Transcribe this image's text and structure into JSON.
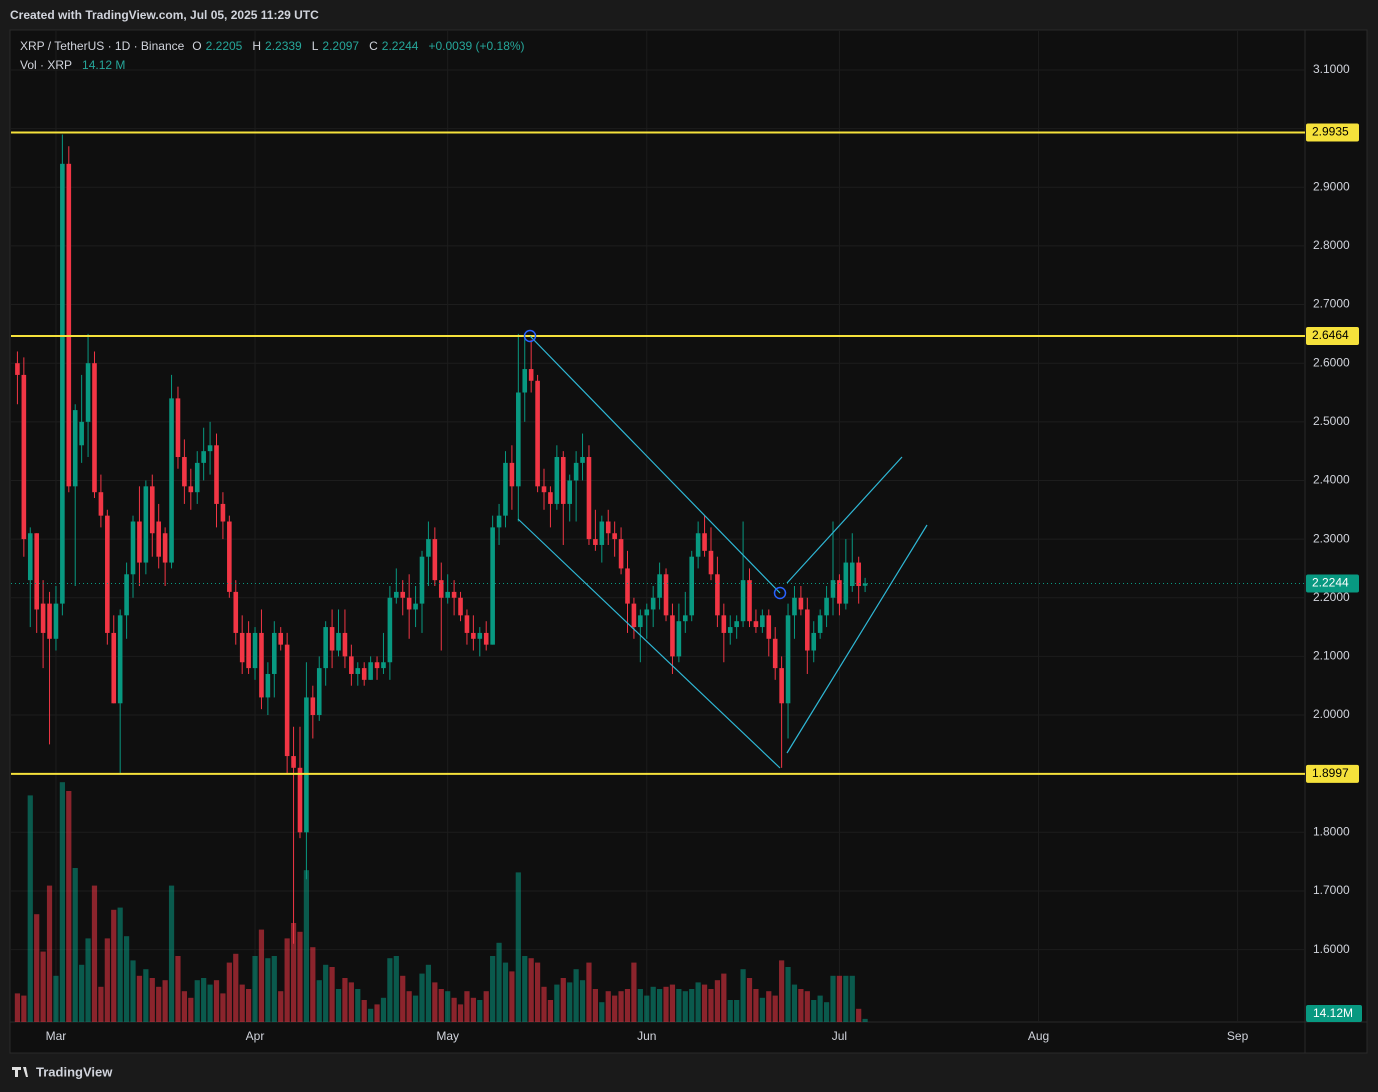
{
  "header": {
    "title": "Created with TradingView.com, Jul 05, 2025 11:29 UTC"
  },
  "footer": {
    "brand": "TradingView"
  },
  "chart_data": {
    "type": "candlestick",
    "symbol": "XRP / TetherUS · 1D · Binance",
    "ohlc_labels": [
      "O",
      "H",
      "L",
      "C"
    ],
    "change_label": "+0.0039 (+0.18%)",
    "volume_title": "Vol · XRP",
    "volume_legend_value": "14.12 M",
    "volume_axis_tag": "14.12M",
    "up_color": "#089981",
    "down_color": "#f23645",
    "level_color": "#f5e13b",
    "grid": true,
    "xlim": [
      -1,
      200.5
    ],
    "xticks": [
      {
        "value": 6,
        "label": "Mar"
      },
      {
        "value": 37,
        "label": "Apr"
      },
      {
        "value": 67,
        "label": "May"
      },
      {
        "value": 98,
        "label": "Jun"
      },
      {
        "value": 128,
        "label": "Jul"
      },
      {
        "value": 159,
        "label": "Aug"
      },
      {
        "value": 190,
        "label": "Sep"
      }
    ],
    "ylim": [
      1.4765,
      3.1665
    ],
    "yticks": [
      {
        "value": 1.6,
        "label": "1.6000"
      },
      {
        "value": 1.7,
        "label": "1.7000"
      },
      {
        "value": 1.8,
        "label": "1.8000"
      },
      {
        "value": 1.9,
        "label": "1.9000"
      },
      {
        "value": 2.0,
        "label": "2.0000"
      },
      {
        "value": 2.1,
        "label": "2.1000"
      },
      {
        "value": 2.2,
        "label": "2.2000"
      },
      {
        "value": 2.3,
        "label": "2.3000"
      },
      {
        "value": 2.4,
        "label": "2.4000"
      },
      {
        "value": 2.5,
        "label": "2.5000"
      },
      {
        "value": 2.6,
        "label": "2.6000"
      },
      {
        "value": 2.7,
        "label": "2.7000"
      },
      {
        "value": 2.8,
        "label": "2.8000"
      },
      {
        "value": 2.9,
        "label": "2.9000"
      },
      {
        "value": 3.0,
        "label": "3.0000"
      },
      {
        "value": 3.1,
        "label": "3.1000"
      }
    ],
    "levels": [
      2.9935,
      2.6464,
      1.8997
    ],
    "candles": [
      [
        2.6,
        2.62,
        2.53,
        2.58
      ],
      [
        2.58,
        2.61,
        2.27,
        2.3
      ],
      [
        2.23,
        2.32,
        2.15,
        2.31
      ],
      [
        2.31,
        2.31,
        2.14,
        2.18
      ],
      [
        2.19,
        2.23,
        2.08,
        2.14
      ],
      [
        2.19,
        2.21,
        1.95,
        2.13
      ],
      [
        2.13,
        2.22,
        2.11,
        2.19
      ],
      [
        2.19,
        2.99,
        2.17,
        2.94
      ],
      [
        2.94,
        2.97,
        2.38,
        2.39
      ],
      [
        2.39,
        2.53,
        2.22,
        2.52
      ],
      [
        2.46,
        2.58,
        2.43,
        2.5
      ],
      [
        2.5,
        2.65,
        2.44,
        2.6
      ],
      [
        2.6,
        2.62,
        2.37,
        2.38
      ],
      [
        2.38,
        2.41,
        2.32,
        2.34
      ],
      [
        2.34,
        2.35,
        2.12,
        2.14
      ],
      [
        2.14,
        2.17,
        2.02,
        2.02
      ],
      [
        2.02,
        2.18,
        1.9,
        2.17
      ],
      [
        2.17,
        2.26,
        2.13,
        2.24
      ],
      [
        2.24,
        2.34,
        2.2,
        2.33
      ],
      [
        2.33,
        2.39,
        2.22,
        2.26
      ],
      [
        2.26,
        2.4,
        2.24,
        2.39
      ],
      [
        2.39,
        2.41,
        2.27,
        2.31
      ],
      [
        2.33,
        2.36,
        2.25,
        2.27
      ],
      [
        2.31,
        2.32,
        2.22,
        2.26
      ],
      [
        2.26,
        2.58,
        2.25,
        2.54
      ],
      [
        2.54,
        2.56,
        2.42,
        2.44
      ],
      [
        2.44,
        2.47,
        2.36,
        2.39
      ],
      [
        2.39,
        2.42,
        2.35,
        2.38
      ],
      [
        2.38,
        2.45,
        2.36,
        2.43
      ],
      [
        2.43,
        2.49,
        2.4,
        2.45
      ],
      [
        2.45,
        2.5,
        2.41,
        2.46
      ],
      [
        2.46,
        2.48,
        2.32,
        2.36
      ],
      [
        2.36,
        2.38,
        2.3,
        2.33
      ],
      [
        2.33,
        2.34,
        2.2,
        2.21
      ],
      [
        2.21,
        2.23,
        2.12,
        2.14
      ],
      [
        2.14,
        2.17,
        2.07,
        2.09
      ],
      [
        2.14,
        2.16,
        2.07,
        2.08
      ],
      [
        2.08,
        2.15,
        2.06,
        2.14
      ],
      [
        2.14,
        2.18,
        2.01,
        2.03
      ],
      [
        2.03,
        2.09,
        2.0,
        2.07
      ],
      [
        2.07,
        2.16,
        2.03,
        2.14
      ],
      [
        2.14,
        2.15,
        2.11,
        2.12
      ],
      [
        2.12,
        2.14,
        1.9,
        1.93
      ],
      [
        1.93,
        1.98,
        1.61,
        1.91
      ],
      [
        1.91,
        1.98,
        1.79,
        1.8
      ],
      [
        1.8,
        2.09,
        1.72,
        2.03
      ],
      [
        2.03,
        2.05,
        1.96,
        2.0
      ],
      [
        2.0,
        2.1,
        1.99,
        2.08
      ],
      [
        2.08,
        2.16,
        2.05,
        2.15
      ],
      [
        2.15,
        2.18,
        2.08,
        2.11
      ],
      [
        2.11,
        2.18,
        2.1,
        2.14
      ],
      [
        2.14,
        2.18,
        2.08,
        2.1
      ],
      [
        2.1,
        2.12,
        2.05,
        2.07
      ],
      [
        2.07,
        2.09,
        2.05,
        2.08
      ],
      [
        2.08,
        2.09,
        2.05,
        2.06
      ],
      [
        2.06,
        2.1,
        2.06,
        2.09
      ],
      [
        2.09,
        2.1,
        2.06,
        2.08
      ],
      [
        2.08,
        2.14,
        2.07,
        2.09
      ],
      [
        2.09,
        2.22,
        2.06,
        2.2
      ],
      [
        2.2,
        2.25,
        2.19,
        2.21
      ],
      [
        2.21,
        2.23,
        2.17,
        2.2
      ],
      [
        2.2,
        2.24,
        2.13,
        2.18
      ],
      [
        2.18,
        2.22,
        2.15,
        2.19
      ],
      [
        2.19,
        2.28,
        2.14,
        2.27
      ],
      [
        2.27,
        2.33,
        2.22,
        2.3
      ],
      [
        2.3,
        2.32,
        2.22,
        2.23
      ],
      [
        2.23,
        2.26,
        2.11,
        2.2
      ],
      [
        2.2,
        2.24,
        2.19,
        2.21
      ],
      [
        2.21,
        2.23,
        2.17,
        2.2
      ],
      [
        2.2,
        2.21,
        2.16,
        2.17
      ],
      [
        2.17,
        2.18,
        2.12,
        2.14
      ],
      [
        2.14,
        2.17,
        2.11,
        2.13
      ],
      [
        2.13,
        2.15,
        2.1,
        2.14
      ],
      [
        2.14,
        2.16,
        2.11,
        2.12
      ],
      [
        2.12,
        2.34,
        2.12,
        2.32
      ],
      [
        2.32,
        2.36,
        2.29,
        2.34
      ],
      [
        2.34,
        2.45,
        2.32,
        2.43
      ],
      [
        2.43,
        2.46,
        2.35,
        2.39
      ],
      [
        2.39,
        2.65,
        2.33,
        2.55
      ],
      [
        2.55,
        2.65,
        2.5,
        2.59
      ],
      [
        2.59,
        2.64,
        2.55,
        2.57
      ],
      [
        2.57,
        2.58,
        2.38,
        2.39
      ],
      [
        2.39,
        2.42,
        2.35,
        2.38
      ],
      [
        2.38,
        2.39,
        2.32,
        2.36
      ],
      [
        2.36,
        2.46,
        2.35,
        2.44
      ],
      [
        2.44,
        2.45,
        2.29,
        2.36
      ],
      [
        2.36,
        2.41,
        2.33,
        2.4
      ],
      [
        2.4,
        2.45,
        2.33,
        2.43
      ],
      [
        2.43,
        2.48,
        2.4,
        2.44
      ],
      [
        2.44,
        2.46,
        2.29,
        2.3
      ],
      [
        2.3,
        2.35,
        2.28,
        2.29
      ],
      [
        2.29,
        2.34,
        2.26,
        2.33
      ],
      [
        2.33,
        2.35,
        2.29,
        2.31
      ],
      [
        2.31,
        2.33,
        2.27,
        2.3
      ],
      [
        2.3,
        2.32,
        2.24,
        2.25
      ],
      [
        2.25,
        2.28,
        2.14,
        2.19
      ],
      [
        2.19,
        2.2,
        2.13,
        2.15
      ],
      [
        2.15,
        2.18,
        2.09,
        2.17
      ],
      [
        2.17,
        2.19,
        2.13,
        2.18
      ],
      [
        2.18,
        2.22,
        2.15,
        2.2
      ],
      [
        2.2,
        2.26,
        2.18,
        2.24
      ],
      [
        2.24,
        2.25,
        2.16,
        2.17
      ],
      [
        2.17,
        2.19,
        2.07,
        2.1
      ],
      [
        2.1,
        2.19,
        2.09,
        2.16
      ],
      [
        2.16,
        2.21,
        2.14,
        2.17
      ],
      [
        2.17,
        2.28,
        2.16,
        2.27
      ],
      [
        2.27,
        2.33,
        2.25,
        2.31
      ],
      [
        2.31,
        2.34,
        2.27,
        2.28
      ],
      [
        2.28,
        2.32,
        2.23,
        2.24
      ],
      [
        2.24,
        2.27,
        2.15,
        2.17
      ],
      [
        2.17,
        2.19,
        2.09,
        2.14
      ],
      [
        2.14,
        2.17,
        2.12,
        2.15
      ],
      [
        2.15,
        2.17,
        2.13,
        2.16
      ],
      [
        2.16,
        2.33,
        2.15,
        2.23
      ],
      [
        2.23,
        2.25,
        2.15,
        2.16
      ],
      [
        2.16,
        2.18,
        2.14,
        2.15
      ],
      [
        2.15,
        2.18,
        2.14,
        2.17
      ],
      [
        2.17,
        2.18,
        2.1,
        2.13
      ],
      [
        2.13,
        2.15,
        2.06,
        2.08
      ],
      [
        2.08,
        2.1,
        1.91,
        2.02
      ],
      [
        2.02,
        2.19,
        1.96,
        2.17
      ],
      [
        2.17,
        2.22,
        2.13,
        2.2
      ],
      [
        2.2,
        2.22,
        2.17,
        2.18
      ],
      [
        2.18,
        2.2,
        2.07,
        2.11
      ],
      [
        2.11,
        2.16,
        2.09,
        2.14
      ],
      [
        2.14,
        2.18,
        2.13,
        2.17
      ],
      [
        2.17,
        2.22,
        2.15,
        2.2
      ],
      [
        2.2,
        2.33,
        2.17,
        2.23
      ],
      [
        2.23,
        2.24,
        2.17,
        2.19
      ],
      [
        2.19,
        2.3,
        2.18,
        2.26
      ],
      [
        2.22,
        2.31,
        2.21,
        2.26
      ],
      [
        2.26,
        2.27,
        2.19,
        2.22
      ],
      [
        2.2205,
        2.2339,
        2.2097,
        2.2244
      ]
    ],
    "volume": [
      130,
      120,
      1030,
      490,
      320,
      620,
      210,
      1090,
      1050,
      700,
      260,
      380,
      620,
      160,
      380,
      510,
      520,
      390,
      280,
      210,
      240,
      200,
      160,
      190,
      620,
      300,
      140,
      110,
      190,
      200,
      170,
      190,
      130,
      270,
      310,
      170,
      150,
      300,
      420,
      290,
      300,
      140,
      380,
      450,
      410,
      690,
      340,
      190,
      260,
      250,
      150,
      200,
      180,
      150,
      100,
      60,
      80,
      110,
      290,
      300,
      210,
      140,
      120,
      220,
      260,
      180,
      150,
      140,
      110,
      80,
      140,
      110,
      100,
      140,
      300,
      360,
      270,
      230,
      680,
      300,
      290,
      270,
      160,
      100,
      170,
      200,
      180,
      240,
      190,
      270,
      150,
      90,
      140,
      120,
      140,
      150,
      270,
      150,
      120,
      160,
      150,
      160,
      170,
      150,
      140,
      150,
      180,
      170,
      150,
      190,
      220,
      100,
      100,
      240,
      200,
      150,
      110,
      140,
      120,
      280,
      250,
      170,
      150,
      140,
      100,
      120,
      90,
      210,
      210,
      210,
      210,
      60,
      14.12
    ]
  }
}
